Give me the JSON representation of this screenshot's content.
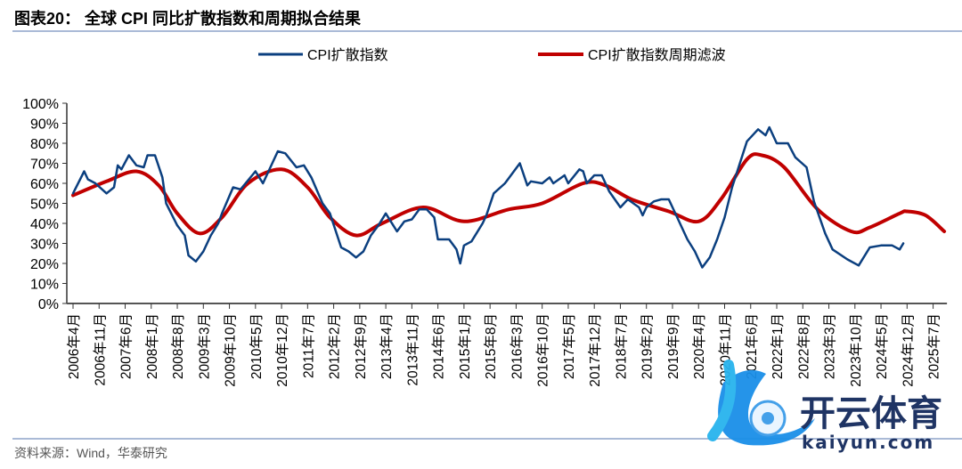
{
  "header": {
    "title": "图表20：  全球 CPI 同比扩散指数和周期拟合结果"
  },
  "source": "资料来源：Wind，华泰研究",
  "watermark": {
    "brand": "开云体育",
    "domain": "kaiyun.com"
  },
  "colors": {
    "cpi": "#0b3f7f",
    "filter": "#c00000",
    "rule": "#8ea4c8"
  },
  "chart_data": {
    "type": "line",
    "title": "全球 CPI 同比扩散指数和周期拟合结果",
    "xlabel": "",
    "ylabel": "",
    "ylim": [
      0,
      100
    ],
    "y_ticks": [
      "0%",
      "10%",
      "20%",
      "30%",
      "40%",
      "50%",
      "60%",
      "70%",
      "80%",
      "90%",
      "100%"
    ],
    "x_start": "2006-04",
    "x_end": "2025-10",
    "x_tick_labels": [
      "2006年4月",
      "2006年11月",
      "2007年6月",
      "2008年1月",
      "2008年8月",
      "2009年3月",
      "2009年10月",
      "2010年5月",
      "2010年12月",
      "2011年7月",
      "2012年2月",
      "2012年9月",
      "2013年4月",
      "2013年11月",
      "2014年6月",
      "2015年1月",
      "2015年8月",
      "2016年3月",
      "2016年10月",
      "2017年5月",
      "2017年12月",
      "2018年7月",
      "2019年2月",
      "2019年9月",
      "2020年4月",
      "2020年11月",
      "2021年6月",
      "2022年1月",
      "2022年8月",
      "2023年3月",
      "2023年10月",
      "2024年5月",
      "2024年12月",
      "2025年7月"
    ],
    "legend_position": "top",
    "series": [
      {
        "name": "CPI扩散指数",
        "color": "#0b3f7f",
        "points": [
          [
            "2006-04",
            55
          ],
          [
            "2006-07",
            66
          ],
          [
            "2006-08",
            62
          ],
          [
            "2006-10",
            60
          ],
          [
            "2007-01",
            55
          ],
          [
            "2007-03",
            58
          ],
          [
            "2007-04",
            69
          ],
          [
            "2007-05",
            67
          ],
          [
            "2007-07",
            74
          ],
          [
            "2007-09",
            69
          ],
          [
            "2007-11",
            68
          ],
          [
            "2007-12",
            74
          ],
          [
            "2008-02",
            74
          ],
          [
            "2008-04",
            63
          ],
          [
            "2008-05",
            50
          ],
          [
            "2008-08",
            39
          ],
          [
            "2008-10",
            34
          ],
          [
            "2008-11",
            24
          ],
          [
            "2009-01",
            21
          ],
          [
            "2009-03",
            26
          ],
          [
            "2009-05",
            34
          ],
          [
            "2009-07",
            40
          ],
          [
            "2009-08",
            45
          ],
          [
            "2009-11",
            58
          ],
          [
            "2010-01",
            57
          ],
          [
            "2010-05",
            66
          ],
          [
            "2010-07",
            60
          ],
          [
            "2010-11",
            76
          ],
          [
            "2011-01",
            75
          ],
          [
            "2011-04",
            68
          ],
          [
            "2011-06",
            69
          ],
          [
            "2011-08",
            63
          ],
          [
            "2011-11",
            50
          ],
          [
            "2012-01",
            45
          ],
          [
            "2012-04",
            28
          ],
          [
            "2012-06",
            26
          ],
          [
            "2012-08",
            23
          ],
          [
            "2012-10",
            26
          ],
          [
            "2012-12",
            34
          ],
          [
            "2013-02",
            39
          ],
          [
            "2013-04",
            45
          ],
          [
            "2013-07",
            36
          ],
          [
            "2013-09",
            41
          ],
          [
            "2013-11",
            42
          ],
          [
            "2014-01",
            47
          ],
          [
            "2014-03",
            47
          ],
          [
            "2014-05",
            43
          ],
          [
            "2014-06",
            32
          ],
          [
            "2014-09",
            32
          ],
          [
            "2014-11",
            27
          ],
          [
            "2014-12",
            20
          ],
          [
            "2015-01",
            29
          ],
          [
            "2015-03",
            31
          ],
          [
            "2015-06",
            40
          ],
          [
            "2015-07",
            44
          ],
          [
            "2015-09",
            55
          ],
          [
            "2015-12",
            60
          ],
          [
            "2016-04",
            70
          ],
          [
            "2016-06",
            59
          ],
          [
            "2016-07",
            61
          ],
          [
            "2016-10",
            60
          ],
          [
            "2016-12",
            63
          ],
          [
            "2017-01",
            60
          ],
          [
            "2017-04",
            64
          ],
          [
            "2017-05",
            60
          ],
          [
            "2017-08",
            67
          ],
          [
            "2017-09",
            66
          ],
          [
            "2017-10",
            60
          ],
          [
            "2017-12",
            64
          ],
          [
            "2018-02",
            64
          ],
          [
            "2018-04",
            56
          ],
          [
            "2018-07",
            48
          ],
          [
            "2018-09",
            52
          ],
          [
            "2018-12",
            48
          ],
          [
            "2019-01",
            44
          ],
          [
            "2019-02",
            48
          ],
          [
            "2019-04",
            51
          ],
          [
            "2019-06",
            52
          ],
          [
            "2019-08",
            52
          ],
          [
            "2019-10",
            44
          ],
          [
            "2020-01",
            32
          ],
          [
            "2020-03",
            26
          ],
          [
            "2020-05",
            18
          ],
          [
            "2020-07",
            23
          ],
          [
            "2020-09",
            32
          ],
          [
            "2020-11",
            43
          ],
          [
            "2021-01",
            58
          ],
          [
            "2021-05",
            81
          ],
          [
            "2021-08",
            87
          ],
          [
            "2021-10",
            84
          ],
          [
            "2021-11",
            88
          ],
          [
            "2022-01",
            80
          ],
          [
            "2022-04",
            80
          ],
          [
            "2022-06",
            73
          ],
          [
            "2022-09",
            68
          ],
          [
            "2022-11",
            51
          ],
          [
            "2023-02",
            35
          ],
          [
            "2023-04",
            27
          ],
          [
            "2023-08",
            22
          ],
          [
            "2023-11",
            19
          ],
          [
            "2024-02",
            28
          ],
          [
            "2024-05",
            29
          ],
          [
            "2024-08",
            29
          ],
          [
            "2024-10",
            27
          ],
          [
            "2024-11",
            30
          ]
        ]
      },
      {
        "name": "CPI扩散指数周期滤波",
        "color": "#c00000",
        "points": [
          [
            "2006-04",
            54
          ],
          [
            "2007-01",
            61
          ],
          [
            "2007-09",
            66
          ],
          [
            "2008-03",
            59
          ],
          [
            "2008-08",
            45
          ],
          [
            "2009-02",
            35
          ],
          [
            "2009-08",
            43
          ],
          [
            "2010-03",
            60
          ],
          [
            "2010-12",
            67
          ],
          [
            "2011-07",
            58
          ],
          [
            "2012-01",
            43
          ],
          [
            "2012-08",
            34
          ],
          [
            "2013-03",
            40
          ],
          [
            "2014-02",
            48
          ],
          [
            "2015-01",
            41
          ],
          [
            "2016-01",
            47
          ],
          [
            "2016-10",
            50
          ],
          [
            "2017-09",
            60
          ],
          [
            "2018-03",
            59
          ],
          [
            "2018-10",
            52
          ],
          [
            "2019-08",
            46
          ],
          [
            "2020-04",
            41
          ],
          [
            "2020-10",
            52
          ],
          [
            "2021-05",
            72
          ],
          [
            "2021-09",
            74
          ],
          [
            "2022-03",
            68
          ],
          [
            "2022-12",
            47
          ],
          [
            "2023-09",
            36
          ],
          [
            "2024-02",
            38
          ],
          [
            "2024-10",
            45
          ],
          [
            "2024-12",
            46
          ],
          [
            "2025-05",
            44
          ],
          [
            "2025-10",
            36
          ]
        ]
      }
    ]
  }
}
